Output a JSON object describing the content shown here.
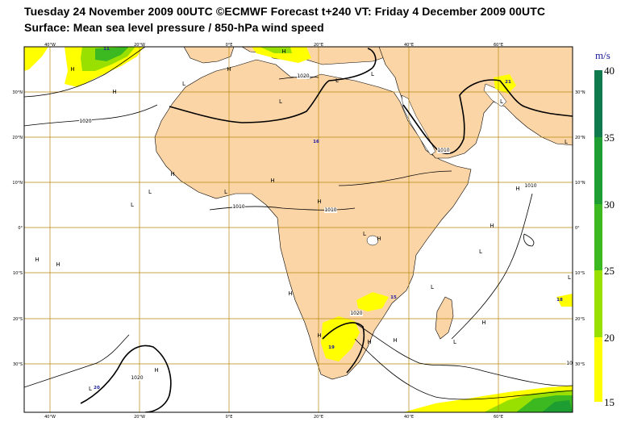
{
  "title": {
    "line1": "Tuesday 24 November 2009 00UTC ©ECMWF Forecast t+240 VT: Friday 4 December 2009 00UTC",
    "line2": "Surface: Mean sea level pressure / 850-hPa wind speed"
  },
  "colors": {
    "land": "#fcd5a6",
    "sea": "#ffffff",
    "grid": "#b8860b",
    "isobar": "#000000",
    "wind_15_20": "#ffff00",
    "wind_20_25": "#99e000",
    "wind_25_30": "#3cb820",
    "wind_30_35": "#1e9e32",
    "wind_35_40": "#0e7a4e",
    "wind_label": "#1a1aa0"
  },
  "grid": {
    "lon_labels": [
      "40°W",
      "20°W",
      "0°E",
      "20°E",
      "40°E",
      "60°E"
    ],
    "lat_labels_left": [
      "30°N",
      "20°N",
      "10°N",
      "0°",
      "10°S",
      "20°S",
      "30°S"
    ],
    "lat_labels_right": [
      "30°N",
      "20°N",
      "10°N",
      "0°",
      "10°S",
      "20°S",
      "30°S"
    ]
  },
  "colorbar": {
    "unit": "m/s",
    "ticks": [
      "40",
      "35",
      "30",
      "25",
      "20",
      "15"
    ]
  },
  "isobar_labels": [
    "1020",
    "1020",
    "1010",
    "1010",
    "1010",
    "1020",
    "1020",
    "1020",
    "1010"
  ],
  "pressure_centers": [
    "H",
    "H",
    "L",
    "H",
    "L",
    "H",
    "L",
    "L",
    "H",
    "L",
    "L",
    "L",
    "H",
    "H",
    "L",
    "H",
    "H",
    "H",
    "H",
    "L",
    "H",
    "H",
    "L",
    "L",
    "H",
    "L",
    "H",
    "H",
    "L",
    "H",
    "H",
    "L",
    "L",
    "H"
  ],
  "wind_labels": [
    "11",
    "21",
    "16",
    "15",
    "18",
    "19",
    "20"
  ]
}
